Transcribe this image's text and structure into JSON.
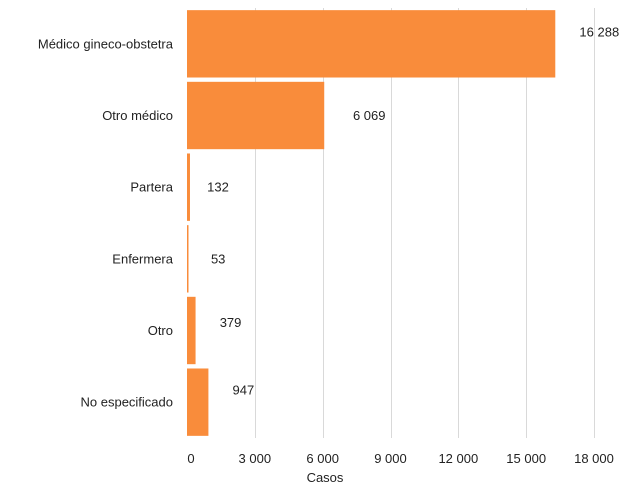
{
  "chart_data": {
    "type": "bar",
    "orientation": "horizontal",
    "categories": [
      "Médico gineco-obstetra",
      "Otro médico",
      "Partera",
      "Enfermera",
      "Otro",
      "No especificado"
    ],
    "values": [
      16288,
      6069,
      132,
      53,
      379,
      947
    ],
    "value_labels": [
      "16 288",
      "6 069",
      "132",
      "53",
      "379",
      "947"
    ],
    "xlabel": "Casos",
    "ylabel": "",
    "title": "",
    "xlim": [
      0,
      18000
    ],
    "x_ticks": [
      0,
      3000,
      6000,
      9000,
      12000,
      15000,
      18000
    ],
    "x_tick_labels": [
      "0",
      "3 000",
      "6 000",
      "9 000",
      "12 000",
      "15 000",
      "18 000"
    ],
    "grid": "vertical",
    "legend": "none",
    "bar_color": "#F98C3B",
    "grid_color": "#D9D9D9"
  }
}
